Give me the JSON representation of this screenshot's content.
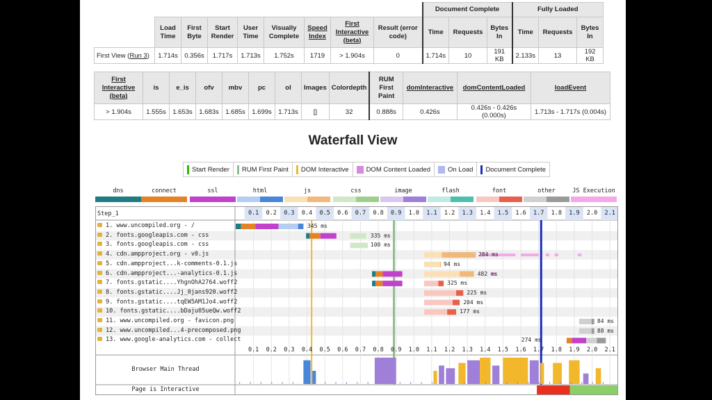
{
  "table1": {
    "group_headers": [
      "Document Complete",
      "Fully Loaded"
    ],
    "headers": [
      {
        "text": "Load Time",
        "link": false
      },
      {
        "text": "First Byte",
        "link": false
      },
      {
        "text": "Start Render",
        "link": false
      },
      {
        "text": "User Time",
        "link": false
      },
      {
        "text": "Visually Complete",
        "link": false
      },
      {
        "text": "Speed Index",
        "link": true
      },
      {
        "text": "First Interactive (beta)",
        "link": true
      },
      {
        "text": "Result (error code)",
        "link": false
      },
      {
        "text": "Time",
        "link": false
      },
      {
        "text": "Requests",
        "link": false
      },
      {
        "text": "Bytes In",
        "link": false
      },
      {
        "text": "Time",
        "link": false
      },
      {
        "text": "Requests",
        "link": false
      },
      {
        "text": "Bytes In",
        "link": false
      }
    ],
    "row_label": "First View (",
    "run_link": "Run 3",
    "row_label_end": ")",
    "values": [
      "1.714s",
      "0.356s",
      "1.717s",
      "1.713s",
      "1.752s",
      "1719",
      "> 1.904s",
      "0",
      "1.714s",
      "10",
      "191 KB",
      "2.133s",
      "13",
      "192 KB"
    ]
  },
  "table2": {
    "headers": [
      {
        "text": "First Interactive (beta)",
        "link": true
      },
      {
        "text": "is",
        "link": false
      },
      {
        "text": "e_is",
        "link": false
      },
      {
        "text": "ofv",
        "link": false
      },
      {
        "text": "mbv",
        "link": false
      },
      {
        "text": "pc",
        "link": false
      },
      {
        "text": "ol",
        "link": false
      },
      {
        "text": "Images",
        "link": false
      },
      {
        "text": "Colordepth",
        "link": false
      },
      {
        "text": "RUM First Paint",
        "link": false
      },
      {
        "text": "domInteractive",
        "link": true
      },
      {
        "text": "domContentLoaded",
        "link": true
      },
      {
        "text": "loadEvent",
        "link": true
      }
    ],
    "values": [
      "> 1.904s",
      "1.555s",
      "1.653s",
      "1.683s",
      "1.685s",
      "1.699s",
      "1.713s",
      "[]",
      "32",
      "0.888s",
      "0.426s",
      "0.426s - 0.426s (0.000s)",
      "1.713s - 1.717s (0.004s)"
    ]
  },
  "waterfall": {
    "title": "Waterfall View",
    "legend": [
      {
        "label": "Start Render",
        "color": "#28bc00"
      },
      {
        "label": "RUM First Paint",
        "color": "#8fbc8f"
      },
      {
        "label": "DOM Interactive",
        "color": "#f2b72b"
      },
      {
        "label": "DOM Content Loaded",
        "color": "#d888df"
      },
      {
        "label": "On Load",
        "color": "#b0b8f0"
      },
      {
        "label": "Document Complete",
        "color": "#1c2bb8"
      }
    ],
    "types": [
      {
        "label": "dns",
        "c1": "#1f7c83",
        "c2": "#1f7c83"
      },
      {
        "label": "connect",
        "c1": "#e58226",
        "c2": "#e58226"
      },
      {
        "label": "ssl",
        "c1": "#c141cd",
        "c2": "#c141cd"
      },
      {
        "label": "html",
        "c1": "#b4cdf0",
        "c2": "#4a86d8"
      },
      {
        "label": "js",
        "c1": "#fae0b4",
        "c2": "#f0b87a"
      },
      {
        "label": "css",
        "c1": "#d0e8c8",
        "c2": "#9fcf8f"
      },
      {
        "label": "image",
        "c1": "#d8c8f0",
        "c2": "#9f7fd8"
      },
      {
        "label": "flash",
        "c1": "#c0eae2",
        "c2": "#4dbfae"
      },
      {
        "label": "font",
        "c1": "#f8c8c0",
        "c2": "#e8604a"
      },
      {
        "label": "other",
        "c1": "#d0d0d0",
        "c2": "#9a9a9a"
      },
      {
        "label": "JS Execution",
        "c1": "#f5a8e8",
        "c2": "#f5a8e8"
      }
    ],
    "step_label": "Step_1",
    "ticks": [
      "0.1",
      "0.2",
      "0.3",
      "0.4",
      "0.5",
      "0.6",
      "0.7",
      "0.8",
      "0.9",
      "1.0",
      "1.1",
      "1.2",
      "1.3",
      "1.4",
      "1.5",
      "1.6",
      "1.7",
      "1.8",
      "1.9",
      "2.0",
      "2.1"
    ],
    "rows": [
      {
        "label": "1. www.uncompiled.org - /",
        "duration": "345 ms"
      },
      {
        "label": "2. fonts.googleapis.com - css",
        "duration": "335 ms"
      },
      {
        "label": "3. fonts.googleapis.com - css",
        "duration": "100 ms"
      },
      {
        "label": "4. cdn.ampproject.org - v0.js",
        "duration": "284 ms"
      },
      {
        "label": "5. cdn.ampproject...k-comments-0.1.js",
        "duration": "94 ms"
      },
      {
        "label": "6. cdn.ampproject...-analytics-0.1.js",
        "duration": "482 ms"
      },
      {
        "label": "7. fonts.gstatic....YhgnOhA2764.woff2",
        "duration": "325 ms"
      },
      {
        "label": "8. fonts.gstatic....Jj_0jans920.woff2",
        "duration": "225 ms"
      },
      {
        "label": "9. fonts.gstatic....tqEW5AM1Jo4.woff2",
        "duration": "204 ms"
      },
      {
        "label": "10. fonts.gstatic....bDaju05ueQw.woff2",
        "duration": "177 ms"
      },
      {
        "label": "11. www.uncompiled.org - favicon.png",
        "duration": "84 ms"
      },
      {
        "label": "12. www.uncompiled...4-precomposed.png",
        "duration": "88 ms"
      },
      {
        "label": "13. www.google-analytics.com - collect",
        "duration": "274 ms"
      }
    ],
    "main_thread_label": "Browser Main Thread",
    "interactive_label": "Page is Interactive"
  }
}
